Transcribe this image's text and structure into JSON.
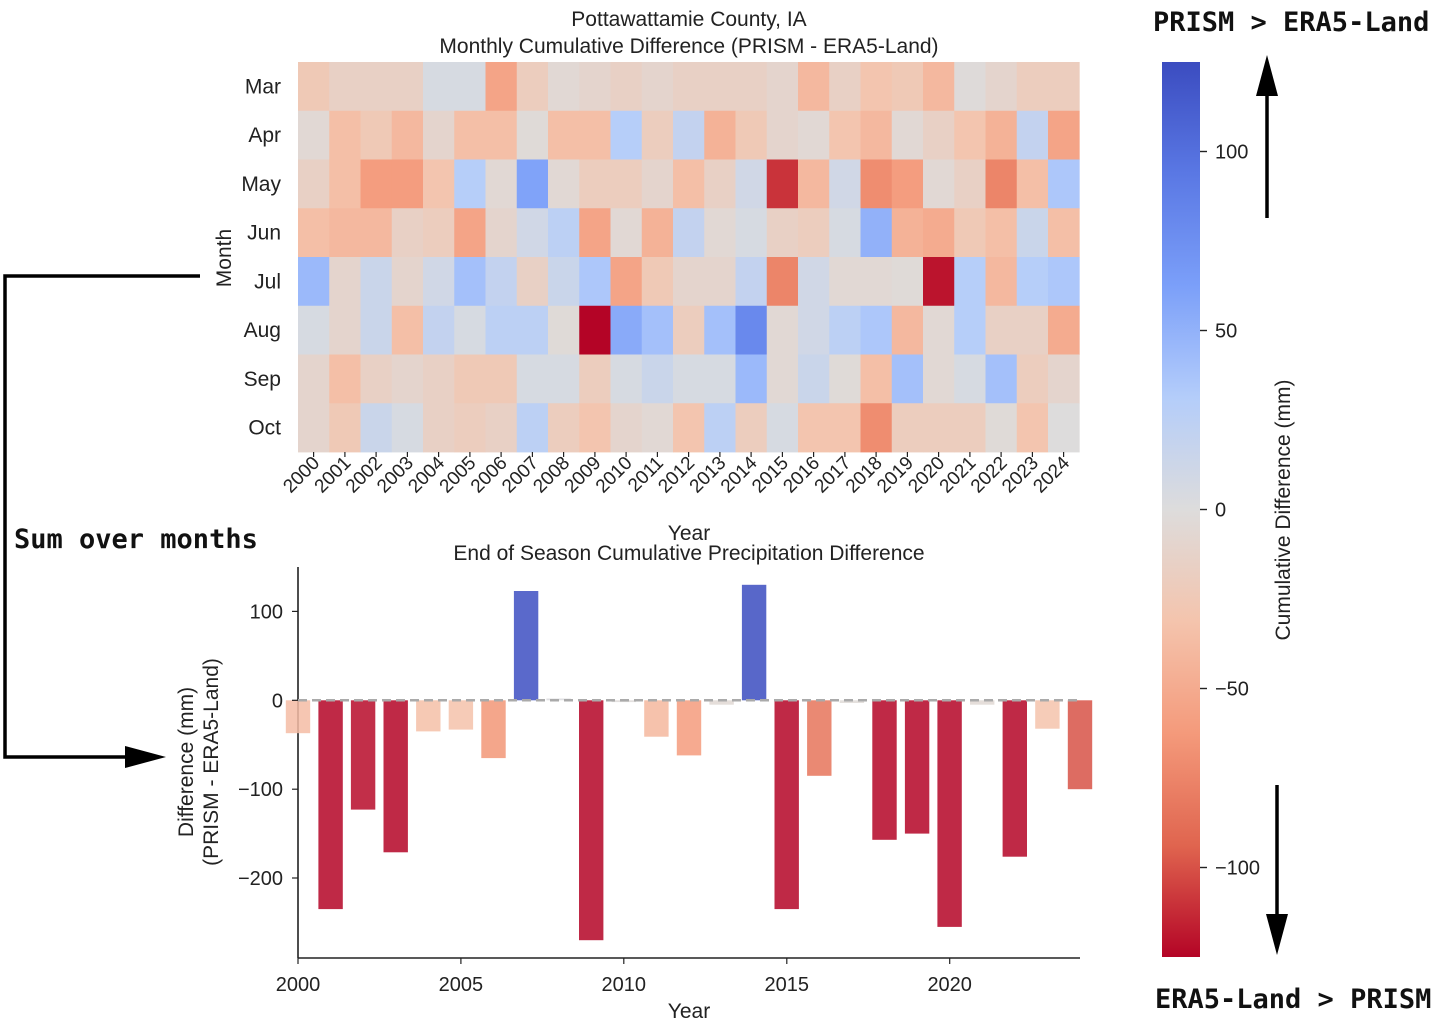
{
  "annotations": {
    "top_right": "PRISM > ERA5-Land",
    "bottom_right": "ERA5-Land > PRISM",
    "sum_label": "Sum over months"
  },
  "colors": {
    "cmap": "coolwarm",
    "blue_end": "#3b4cc0",
    "neutral": "#dddcdc",
    "red_end": "#b40426",
    "zero_line": "#aaaaaa"
  },
  "chart_data": [
    {
      "type": "heatmap",
      "title": "Pottawattamie County, IA",
      "subtitle": "Monthly Cumulative Difference (PRISM - ERA5-Land)",
      "xlabel": "Year",
      "ylabel": "Month",
      "x": [
        "2000",
        "2001",
        "2002",
        "2003",
        "2004",
        "2005",
        "2006",
        "2007",
        "2008",
        "2009",
        "2010",
        "2011",
        "2012",
        "2013",
        "2014",
        "2015",
        "2016",
        "2017",
        "2018",
        "2019",
        "2020",
        "2021",
        "2022",
        "2023",
        "2024"
      ],
      "y": [
        "Mar",
        "Apr",
        "May",
        "Jun",
        "Jul",
        "Aug",
        "Sep",
        "Oct"
      ],
      "values": [
        [
          -25,
          -15,
          -15,
          -15,
          5,
          5,
          -55,
          -20,
          -5,
          -10,
          -15,
          -10,
          -15,
          -15,
          -15,
          -10,
          -40,
          -15,
          -30,
          -25,
          -40,
          -2,
          -10,
          -20,
          -20
        ],
        [
          -5,
          -35,
          -25,
          -40,
          -10,
          -35,
          -35,
          -3,
          -35,
          -35,
          30,
          -20,
          20,
          -45,
          -25,
          -10,
          -5,
          -30,
          -40,
          -5,
          -15,
          -30,
          -45,
          20,
          -55
        ],
        [
          -15,
          -35,
          -60,
          -60,
          -30,
          30,
          -5,
          60,
          -5,
          -20,
          -20,
          -10,
          -35,
          -15,
          10,
          -110,
          -40,
          10,
          -70,
          -60,
          -5,
          -15,
          -75,
          -35,
          35
        ],
        [
          -35,
          -40,
          -40,
          -15,
          -20,
          -55,
          -10,
          10,
          25,
          -55,
          -5,
          -45,
          20,
          -5,
          5,
          -15,
          -20,
          5,
          50,
          -45,
          -50,
          -25,
          -35,
          15,
          -35
        ],
        [
          45,
          -10,
          15,
          -10,
          10,
          40,
          20,
          -15,
          15,
          35,
          -55,
          -25,
          -10,
          -10,
          20,
          -75,
          10,
          -5,
          -5,
          -3,
          -120,
          30,
          -40,
          30,
          35
        ],
        [
          5,
          -10,
          15,
          -35,
          20,
          5,
          25,
          25,
          -3,
          -125,
          55,
          40,
          -20,
          40,
          80,
          -5,
          10,
          25,
          35,
          -40,
          -5,
          30,
          -15,
          -15,
          -50
        ],
        [
          -10,
          -35,
          -15,
          -10,
          -15,
          -25,
          -25,
          5,
          5,
          -20,
          5,
          15,
          5,
          5,
          45,
          -5,
          15,
          -3,
          -35,
          40,
          -5,
          5,
          40,
          -20,
          -10
        ],
        [
          -10,
          -25,
          15,
          5,
          -15,
          -20,
          -15,
          25,
          -20,
          -30,
          -10,
          -5,
          -30,
          25,
          -20,
          5,
          -30,
          -30,
          -70,
          -20,
          -20,
          -20,
          -3,
          -30,
          0
        ]
      ],
      "colorbar": {
        "label": "Cumulative Difference (mm)",
        "range": [
          -125,
          125
        ],
        "ticks": [
          100,
          50,
          0,
          -50,
          -100
        ]
      }
    },
    {
      "type": "bar",
      "title": "End of Season Cumulative Precipitation Difference",
      "xlabel": "Year",
      "ylabel": "Difference (mm)",
      "ylabel2": "(PRISM - ERA5-Land)",
      "categories": [
        2000,
        2001,
        2002,
        2003,
        2004,
        2005,
        2006,
        2007,
        2008,
        2009,
        2010,
        2011,
        2012,
        2013,
        2014,
        2015,
        2016,
        2017,
        2018,
        2019,
        2020,
        2021,
        2022,
        2023,
        2024
      ],
      "values": [
        -37,
        -235,
        -123,
        -171,
        -35,
        -33,
        -65,
        123,
        2,
        -270,
        -2,
        -41,
        -62,
        -5,
        130,
        -235,
        -85,
        -3,
        -157,
        -150,
        -255,
        -5,
        -176,
        -32,
        -100
      ],
      "xlim": [
        2000,
        2024
      ],
      "ylim": [
        -290,
        150
      ],
      "xticks": [
        2000,
        2005,
        2010,
        2015,
        2020
      ],
      "yticks": [
        100,
        0,
        -100,
        -200
      ],
      "zero_line": "dashed",
      "color_range": [
        -125,
        125
      ]
    }
  ]
}
